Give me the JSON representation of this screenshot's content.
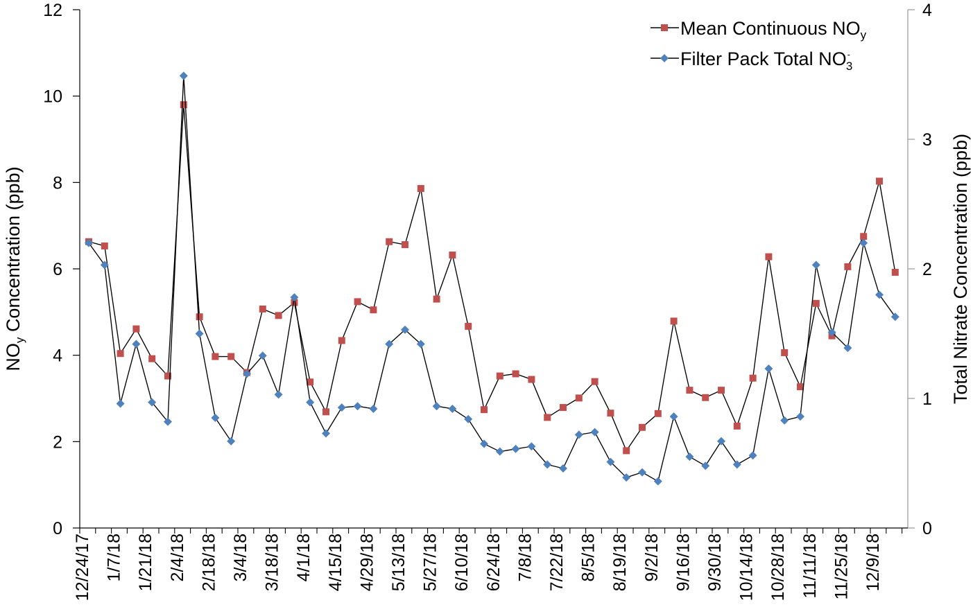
{
  "chart_data": {
    "type": "line",
    "title": "",
    "categories": [
      "12/24/17",
      "12/31/17",
      "1/7/18",
      "1/14/18",
      "1/21/18",
      "1/28/18",
      "2/4/18",
      "2/11/18",
      "2/18/18",
      "2/25/18",
      "3/4/18",
      "3/11/18",
      "3/18/18",
      "3/25/18",
      "4/1/18",
      "4/8/18",
      "4/15/18",
      "4/22/18",
      "4/29/18",
      "5/6/18",
      "5/13/18",
      "5/20/18",
      "5/27/18",
      "6/3/18",
      "6/10/18",
      "6/17/18",
      "6/24/18",
      "7/1/18",
      "7/8/18",
      "7/15/18",
      "7/22/18",
      "7/29/18",
      "8/5/18",
      "8/12/18",
      "8/19/18",
      "8/26/18",
      "9/2/18",
      "9/9/18",
      "9/16/18",
      "9/23/18",
      "9/30/18",
      "10/7/18",
      "10/14/18",
      "10/21/18",
      "10/28/18",
      "11/4/18",
      "11/11/18",
      "11/18/18",
      "11/25/18",
      "12/2/18",
      "12/9/18",
      "12/16/18"
    ],
    "x_tick_labels": [
      "12/24/17",
      "1/7/18",
      "1/21/18",
      "2/4/18",
      "2/18/18",
      "3/4/18",
      "3/18/18",
      "4/1/18",
      "4/15/18",
      "4/29/18",
      "5/13/18",
      "5/27/18",
      "6/10/18",
      "6/24/18",
      "7/8/18",
      "7/22/18",
      "8/5/18",
      "8/19/18",
      "9/2/18",
      "9/16/18",
      "9/30/18",
      "10/14/18",
      "10/28/18",
      "11/11/18",
      "11/25/18",
      "12/9/18"
    ],
    "ylabel": {
      "base": "NO",
      "sub": "y",
      "rest": " Concentration (ppb)"
    },
    "y2label": "Total Nitrate Concentration (ppb)",
    "ylim": [
      0,
      12
    ],
    "y_ticks": [
      0,
      2,
      4,
      6,
      8,
      10,
      12
    ],
    "y2lim": [
      0,
      4
    ],
    "y2_ticks": [
      0,
      1,
      2,
      3,
      4
    ],
    "grid": false,
    "legend_position": "top-right",
    "series": [
      {
        "name": "Mean Continuous NOy",
        "legend_base": "Mean Continuous NO",
        "legend_sub": "y",
        "axis": "left",
        "color": "#c0504d",
        "line_color": "#000000",
        "marker": "square",
        "values": [
          6.63,
          6.53,
          4.04,
          4.61,
          3.92,
          3.52,
          9.8,
          4.89,
          3.97,
          3.97,
          3.6,
          5.07,
          4.92,
          5.22,
          3.38,
          2.69,
          4.34,
          5.24,
          5.05,
          6.63,
          6.56,
          7.86,
          5.3,
          6.32,
          4.67,
          2.74,
          3.52,
          3.57,
          3.44,
          2.56,
          2.79,
          3.01,
          3.39,
          2.66,
          1.79,
          2.33,
          2.65,
          4.79,
          3.19,
          3.02,
          3.19,
          2.36,
          3.47,
          6.28,
          4.06,
          3.27,
          5.2,
          4.45,
          6.05,
          6.75,
          8.03,
          5.92
        ]
      },
      {
        "name": "Filter Pack Total NO3-",
        "legend_base": "Filter Pack Total NO",
        "legend_sub": "3",
        "legend_sup": "-",
        "axis": "right",
        "color": "#4f81bd",
        "line_color": "#000000",
        "marker": "diamond",
        "values": [
          2.2,
          2.03,
          0.96,
          1.42,
          0.97,
          0.82,
          3.49,
          1.5,
          0.85,
          0.67,
          1.19,
          1.33,
          1.03,
          1.78,
          0.97,
          0.73,
          0.93,
          0.94,
          0.92,
          1.42,
          1.53,
          1.42,
          0.94,
          0.92,
          0.84,
          0.65,
          0.59,
          0.61,
          0.63,
          0.49,
          0.46,
          0.72,
          0.74,
          0.51,
          0.39,
          0.43,
          0.36,
          0.86,
          0.55,
          0.48,
          0.67,
          0.49,
          0.56,
          1.23,
          0.83,
          0.86,
          2.03,
          1.51,
          1.39,
          2.2,
          1.8,
          1.63
        ]
      }
    ],
    "colors": {
      "axis": "#000000",
      "right_axis": "#a6a6a6",
      "connector": "#000000"
    }
  }
}
